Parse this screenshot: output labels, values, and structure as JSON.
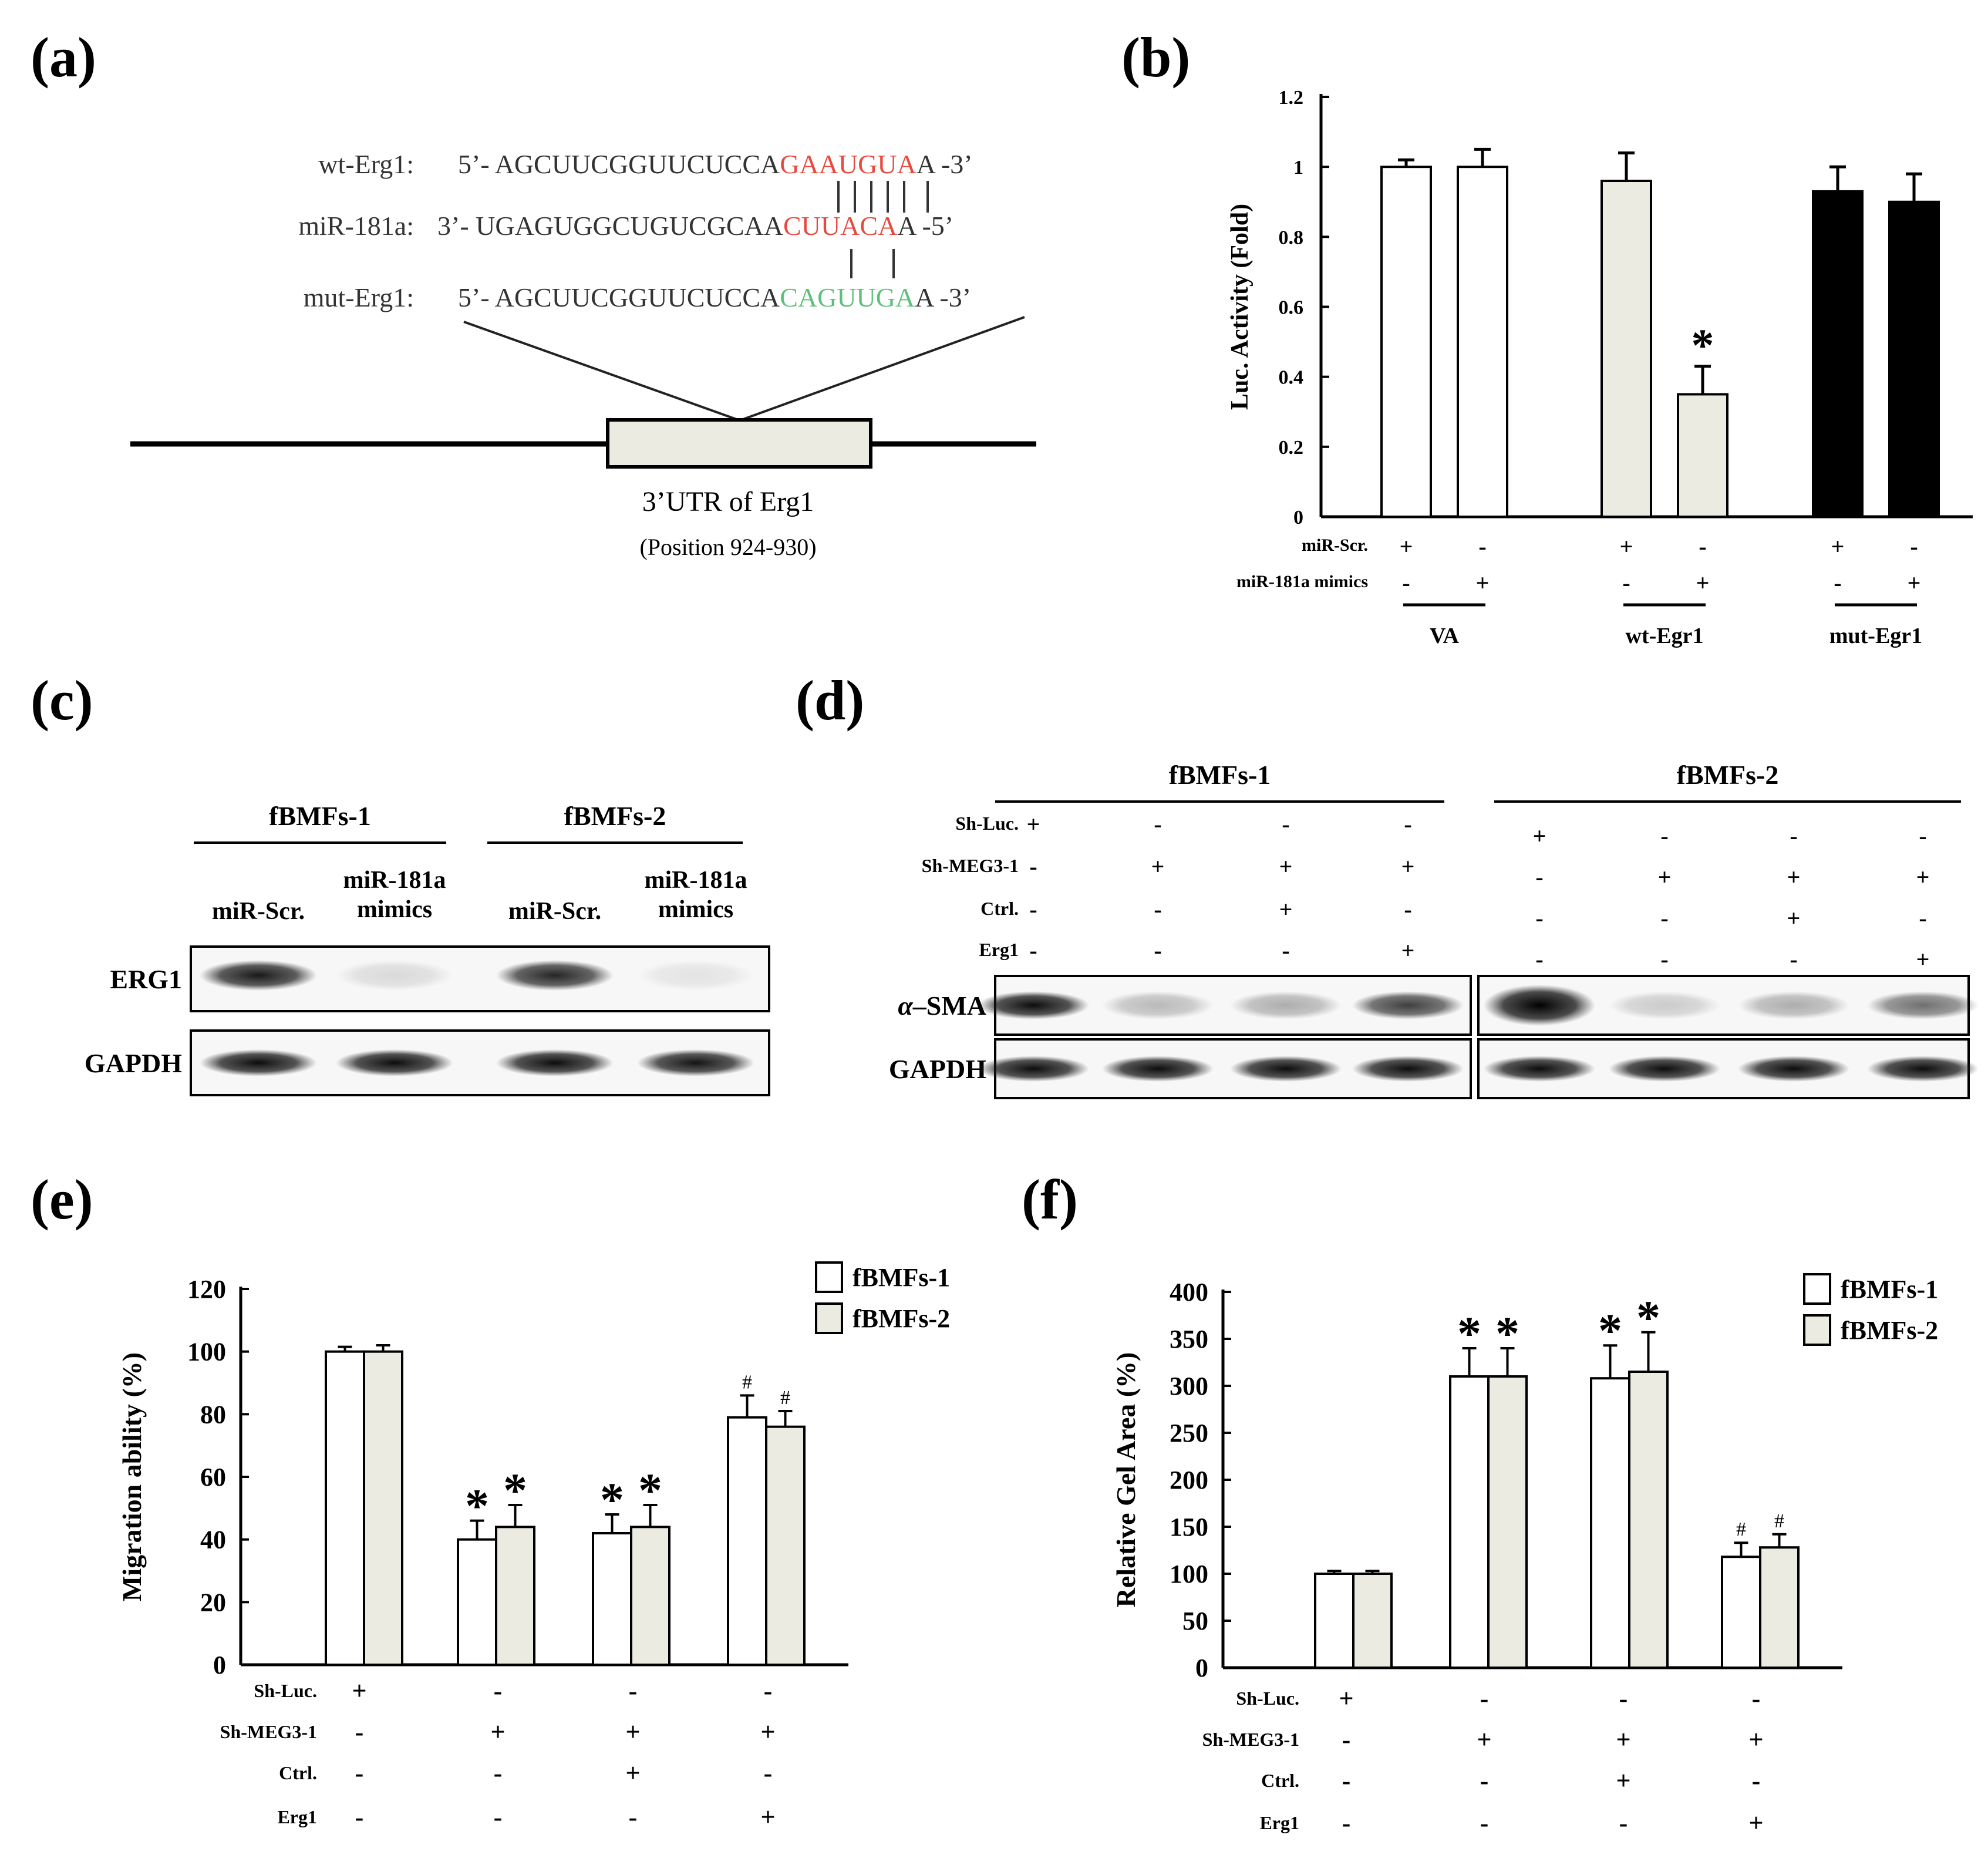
{
  "figure": {
    "panel_labels": {
      "a": "(a)",
      "b": "(b)",
      "c": "(c)",
      "d": "(d)",
      "e": "(e)",
      "f": "(f)"
    }
  },
  "panel_a": {
    "rows": [
      {
        "name": "wt-Erg1:",
        "prefix": "5’- ",
        "seq": "AGCUUCGGUUCUCCA",
        "site": "GAAUGUA",
        "tail": "A -3’",
        "site_color": "#e8493f"
      },
      {
        "name": "miR-181a:",
        "prefix": "3’- ",
        "seq": "UGAGUGGCUGUCGCAA",
        "site": "CUUACA",
        "tail": "A -5’",
        "site_color": "#e8493f"
      },
      {
        "name": "mut-Erg1:",
        "prefix": "5’- ",
        "seq": "AGCUUCGGUUCUCCA",
        "site": "CAGUUGA",
        "tail": "A -3’",
        "site_color": "#5cc07a"
      }
    ],
    "box_label": "3’UTR of  Erg1",
    "position_label": "(Position 924-930)"
  },
  "chart_data": [
    {
      "panel": "b",
      "type": "bar",
      "title": "",
      "ylabel": "Luc. Activity (Fold)",
      "ylim": [
        0,
        1.2
      ],
      "yticks": [
        "0",
        "0.2",
        "0.4",
        "0.6",
        "0.8",
        "1",
        "1.2"
      ],
      "ytick_values": [
        0,
        0.2,
        0.4,
        0.6,
        0.8,
        1,
        1.2
      ],
      "bars": [
        {
          "group": "VA",
          "value": 1.0,
          "error": 0.02,
          "fill": "#ffffff",
          "star": ""
        },
        {
          "group": "VA",
          "value": 1.0,
          "error": 0.05,
          "fill": "#ffffff",
          "star": ""
        },
        {
          "group": "wt-Egr1",
          "value": 0.96,
          "error": 0.08,
          "fill": "#ecebe1",
          "star": ""
        },
        {
          "group": "wt-Egr1",
          "value": 0.35,
          "error": 0.08,
          "fill": "#ecebe1",
          "star": "*"
        },
        {
          "group": "mut-Egr1",
          "value": 0.93,
          "error": 0.07,
          "fill": "#000000",
          "star": ""
        },
        {
          "group": "mut-Egr1",
          "value": 0.9,
          "error": 0.08,
          "fill": "#000000",
          "star": ""
        }
      ],
      "condition_rows": [
        {
          "label": "miR-Scr.",
          "values": [
            "+",
            "-",
            "+",
            "-",
            "+",
            "-"
          ]
        },
        {
          "label": "miR-181a mimics",
          "values": [
            "-",
            "+",
            "-",
            "+",
            "-",
            "+"
          ]
        }
      ],
      "groups": [
        "VA",
        "wt-Egr1",
        "mut-Egr1"
      ]
    },
    {
      "panel": "e",
      "type": "bar",
      "title": "",
      "ylabel": "Migration ability (%)",
      "ylim": [
        0,
        120
      ],
      "yticks": [
        "0",
        "20",
        "40",
        "60",
        "80",
        "100",
        "120"
      ],
      "ytick_values": [
        0,
        20,
        40,
        60,
        80,
        100,
        120
      ],
      "legend": [
        "fBMFs-1",
        "fBMFs-2"
      ],
      "series": [
        {
          "name": "fBMFs-1",
          "fill": "#ffffff",
          "values": [
            100,
            40,
            42,
            79
          ],
          "errors": [
            1.5,
            6,
            6,
            7
          ],
          "marks": [
            "",
            "*",
            "*",
            "#"
          ]
        },
        {
          "name": "fBMFs-2",
          "fill": "#ecebe1",
          "values": [
            100,
            44,
            44,
            76
          ],
          "errors": [
            2,
            7,
            7,
            5
          ],
          "marks": [
            "",
            "*",
            "*",
            "#"
          ]
        }
      ],
      "condition_rows": [
        {
          "label": "Sh-Luc.",
          "values": [
            "+",
            "-",
            "-",
            "-"
          ]
        },
        {
          "label": "Sh-MEG3-1",
          "values": [
            "-",
            "+",
            "+",
            "+"
          ]
        },
        {
          "label": "Ctrl.",
          "values": [
            "-",
            "-",
            "+",
            "-"
          ]
        },
        {
          "label": "Erg1",
          "values": [
            "-",
            "-",
            "-",
            "+"
          ]
        }
      ]
    },
    {
      "panel": "f",
      "type": "bar",
      "title": "",
      "ylabel": "Relative Gel Area (%)",
      "ylim": [
        0,
        400
      ],
      "yticks": [
        "0",
        "50",
        "100",
        "150",
        "200",
        "250",
        "300",
        "350",
        "400"
      ],
      "ytick_values": [
        0,
        50,
        100,
        150,
        200,
        250,
        300,
        350,
        400
      ],
      "legend": [
        "fBMFs-1",
        "fBMFs-2"
      ],
      "series": [
        {
          "name": "fBMFs-1",
          "fill": "#ffffff",
          "values": [
            100,
            310,
            308,
            118
          ],
          "errors": [
            3,
            30,
            35,
            15
          ],
          "marks": [
            "",
            "*",
            "*",
            "#"
          ]
        },
        {
          "name": "fBMFs-2",
          "fill": "#ecebe1",
          "values": [
            100,
            310,
            315,
            128
          ],
          "errors": [
            3,
            30,
            42,
            14
          ],
          "marks": [
            "",
            "*",
            "*",
            "#"
          ]
        }
      ],
      "condition_rows": [
        {
          "label": "Sh-Luc.",
          "values": [
            "+",
            "-",
            "-",
            "-"
          ]
        },
        {
          "label": "Sh-MEG3-1",
          "values": [
            "-",
            "+",
            "+",
            "+"
          ]
        },
        {
          "label": "Ctrl.",
          "values": [
            "-",
            "-",
            "+",
            "-"
          ]
        },
        {
          "label": "Erg1",
          "values": [
            "-",
            "-",
            "-",
            "+"
          ]
        }
      ]
    }
  ],
  "panel_c": {
    "groups": [
      "fBMFs-1",
      "fBMFs-2"
    ],
    "lane_labels": [
      [
        "miR-Scr."
      ],
      [
        "miR-181a",
        "mimics"
      ],
      [
        "miR-Scr."
      ],
      [
        "miR-181a",
        "mimics"
      ]
    ],
    "bands": [
      {
        "name": "ERG1",
        "intensity": [
          0.9,
          0.12,
          0.85,
          0.08
        ]
      },
      {
        "name": "GAPDH",
        "intensity": [
          0.95,
          0.95,
          0.95,
          0.92
        ]
      }
    ]
  },
  "panel_d": {
    "groups": [
      "fBMFs-1",
      "fBMFs-2"
    ],
    "condition_rows": [
      {
        "label": "Sh-Luc.",
        "values": [
          "+",
          "-",
          "-",
          "-",
          "+",
          "-",
          "-",
          "-"
        ]
      },
      {
        "label": "Sh-MEG3-1",
        "values": [
          "-",
          "+",
          "+",
          "+",
          "-",
          "+",
          "+",
          "+"
        ]
      },
      {
        "label": "Ctrl.",
        "values": [
          "-",
          "-",
          "+",
          "-",
          "-",
          "-",
          "+",
          "-"
        ]
      },
      {
        "label": "Erg1",
        "values": [
          "-",
          "-",
          "-",
          "+",
          "-",
          "-",
          "-",
          "+"
        ]
      }
    ],
    "bands": [
      {
        "name": "α-SMA",
        "name_prefix": "α",
        "name_suffix": "–SMA",
        "intensity": [
          0.95,
          0.25,
          0.3,
          0.75,
          1.0,
          0.18,
          0.3,
          0.55
        ]
      },
      {
        "name": "GAPDH",
        "intensity": [
          0.95,
          0.95,
          0.95,
          0.95,
          0.95,
          0.95,
          0.95,
          0.95
        ]
      }
    ]
  }
}
